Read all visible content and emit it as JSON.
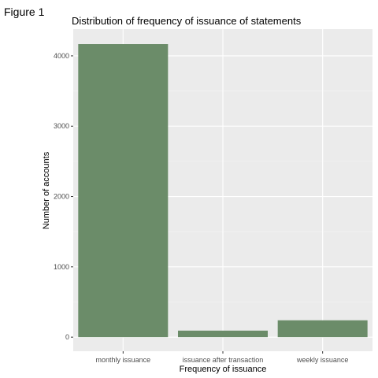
{
  "figure_label": "Figure 1",
  "chart_data": {
    "type": "bar",
    "title": "Distribution of frequency of issuance of statements",
    "xlabel": "Frequency of issuance",
    "ylabel": "Number of accounts",
    "categories": [
      "monthly issuance",
      "issuance after transaction",
      "weekly issuance"
    ],
    "values": [
      4167,
      93,
      240
    ],
    "ylim": [
      -200,
      4380
    ],
    "yticks": [
      0,
      1000,
      2000,
      3000,
      4000
    ],
    "grid": true,
    "legend": "none",
    "colors": {
      "bar": "#6b8c69",
      "panel": "#ebebeb",
      "grid_major": "#ffffff",
      "grid_minor": "#f5f5f5"
    }
  }
}
